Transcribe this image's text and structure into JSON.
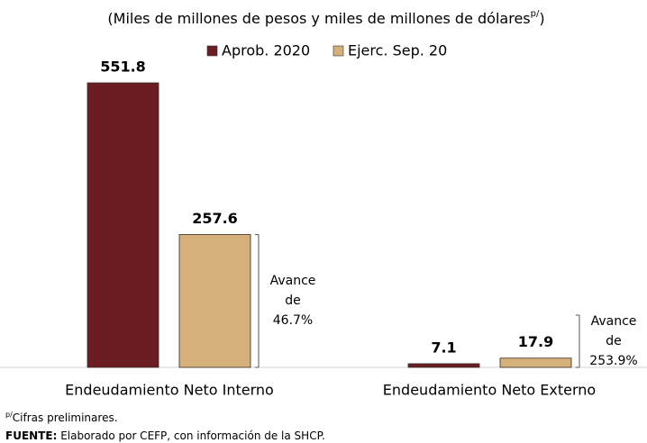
{
  "chart_data": {
    "type": "bar",
    "title": "(Miles de millones de pesos y miles de millones de dólares",
    "title_superscript": "p/",
    "title_end": ")",
    "categories": [
      "Endeudamiento Neto Interno",
      "Endeudamiento Neto Externo"
    ],
    "series": [
      {
        "name": "Aprob. 2020",
        "color": "#6b1d24",
        "values": [
          551.8,
          7.1
        ]
      },
      {
        "name": "Ejerc. Sep. 20",
        "color": "#d6b07a",
        "values": [
          257.6,
          17.9
        ]
      }
    ],
    "annotations": [
      {
        "lines": [
          "Avance",
          "de",
          "46.7%"
        ]
      },
      {
        "lines": [
          "Avance",
          "de",
          "253.9%"
        ]
      }
    ],
    "footnote": {
      "superscript": "p/",
      "text": "Cifras preliminares."
    },
    "source": {
      "label": "FUENTE:",
      "text": " Elaborado por CEFP, con información de la SHCP."
    }
  }
}
